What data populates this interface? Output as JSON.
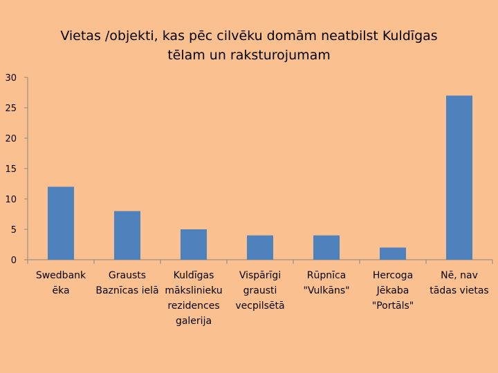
{
  "chart_data": {
    "type": "bar",
    "title_lines": [
      "Vietas /objekti, kas pēc cilvēku domām neatbilst Kuldīgas",
      "tēlam un raksturojumam"
    ],
    "categories": [
      "Swedbank ēka",
      "Grausts Baznīcas ielā",
      "Kuldīgas mākslinieku rezidences galerija",
      "Vispārīgi grausti vecpilsētā",
      "Rūpnīca \"Vulkāns\"",
      "Hercoga Jēkaba \"Portāls\"",
      "Nē, nav tādas vietas"
    ],
    "category_label_lines": [
      [
        "Swedbank",
        "ēka"
      ],
      [
        "Grausts",
        "Baznīcas ielā"
      ],
      [
        "Kuldīgas",
        "mākslinieku",
        "rezidences",
        "galerija"
      ],
      [
        "Vispārīgi",
        "grausti",
        "vecpilsētā"
      ],
      [
        "Rūpnīca",
        "\"Vulkāns\""
      ],
      [
        "Hercoga",
        "Jēkaba",
        "\"Portāls\""
      ],
      [
        "Nē, nav",
        "tādas vietas"
      ]
    ],
    "values": [
      12,
      8,
      5,
      4,
      4,
      2,
      27
    ],
    "ylim": [
      0,
      30
    ],
    "yticks": [
      0,
      5,
      10,
      15,
      20,
      25,
      30
    ],
    "grid": false,
    "legend": "none",
    "bar_color": "#4F81BD",
    "axis_color": "#868686"
  }
}
